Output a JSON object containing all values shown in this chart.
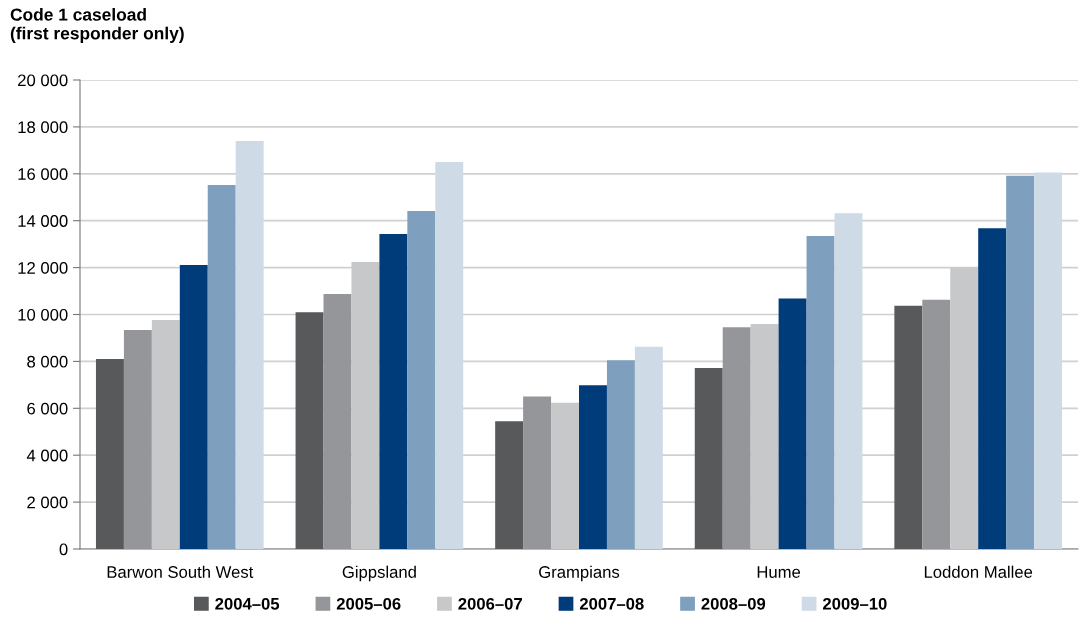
{
  "chart_data": {
    "type": "bar",
    "ylabel": "Code 1 caseload\n(first responder only)",
    "categories": [
      "Barwon South West",
      "Gippsland",
      "Grampians",
      "Hume",
      "Loddon Mallee"
    ],
    "series": [
      {
        "name": "2004–05",
        "color": "#58595b",
        "values": [
          8100,
          10100,
          5450,
          7720,
          10370
        ]
      },
      {
        "name": "2005–06",
        "color": "#959699",
        "values": [
          9340,
          10870,
          6500,
          9460,
          10630
        ]
      },
      {
        "name": "2006–07",
        "color": "#c7c8ca",
        "values": [
          9770,
          12240,
          6240,
          9600,
          12000
        ]
      },
      {
        "name": "2007–08",
        "color": "#003b7a",
        "values": [
          12110,
          13430,
          6980,
          10680,
          13680
        ]
      },
      {
        "name": "2008–09",
        "color": "#7ea0be",
        "values": [
          15520,
          14410,
          8050,
          13350,
          15920
        ]
      },
      {
        "name": "2009–10",
        "color": "#cedae5",
        "values": [
          17400,
          16500,
          8620,
          14320,
          16060
        ]
      }
    ],
    "ylim": [
      0,
      20000
    ],
    "yticks": [
      {
        "value": 0,
        "label": "0"
      },
      {
        "value": 2000,
        "label": "2 000"
      },
      {
        "value": 4000,
        "label": "4 000"
      },
      {
        "value": 6000,
        "label": "6 000"
      },
      {
        "value": 8000,
        "label": "8 000"
      },
      {
        "value": 10000,
        "label": "10 000"
      },
      {
        "value": 12000,
        "label": "12 000"
      },
      {
        "value": 14000,
        "label": "14 000"
      },
      {
        "value": 16000,
        "label": "16 000"
      },
      {
        "value": 18000,
        "label": "18 000"
      },
      {
        "value": 20000,
        "label": "20 000"
      }
    ],
    "grid": "y",
    "legend": "bottom"
  }
}
